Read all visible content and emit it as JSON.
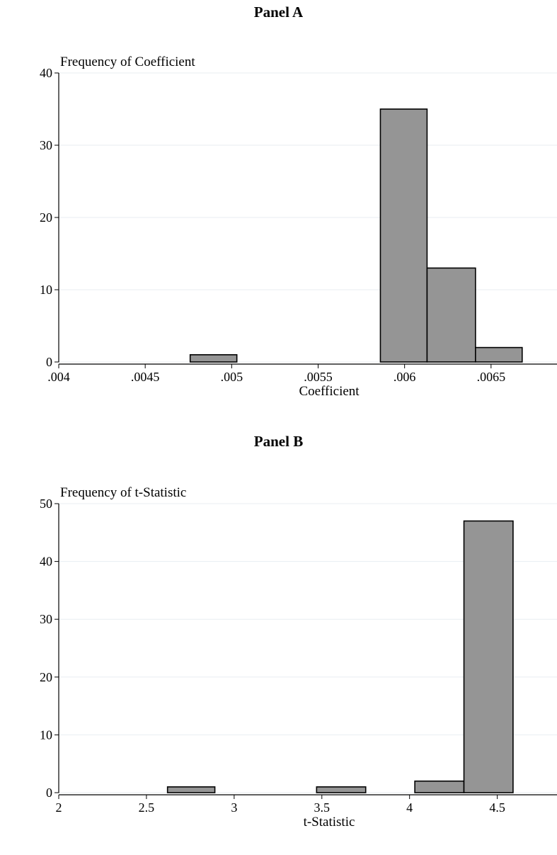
{
  "colors": {
    "bar_fill": "#959595",
    "bar_stroke": "#000000",
    "grid": "#e8eef2",
    "axis": "#000000"
  },
  "chart_data": [
    {
      "type": "bar",
      "title": "Panel A",
      "ylabel": "Frequency of Coefficient",
      "xlabel": "Coefficient",
      "xlim": [
        0.004,
        0.00682
      ],
      "ylim": [
        0,
        40
      ],
      "xticks": [
        0.004,
        0.0045,
        0.005,
        0.0055,
        0.006,
        0.0065
      ],
      "xtick_labels": [
        ".004",
        ".0045",
        ".005",
        ".0055",
        ".006",
        ".0065"
      ],
      "yticks": [
        0,
        10,
        20,
        30,
        40
      ],
      "ytick_labels": [
        "0",
        "10",
        "20",
        "30",
        "40"
      ],
      "grid": true,
      "bins": [
        {
          "x0": 0.00476,
          "x1": 0.00503,
          "count": 1
        },
        {
          "x0": 0.00586,
          "x1": 0.00613,
          "count": 35
        },
        {
          "x0": 0.00613,
          "x1": 0.00641,
          "count": 13
        },
        {
          "x0": 0.00641,
          "x1": 0.00668,
          "count": 2
        }
      ]
    },
    {
      "type": "bar",
      "title": "Panel B",
      "ylabel": "Frequency of t-Statistic",
      "xlabel": "t-Statistic",
      "xlim": [
        2,
        4.78
      ],
      "ylim": [
        0,
        50
      ],
      "xticks": [
        2,
        2.5,
        3,
        3.5,
        4,
        4.5
      ],
      "xtick_labels": [
        "2",
        "2.5",
        "3",
        "3.5",
        "4",
        "4.5"
      ],
      "yticks": [
        0,
        10,
        20,
        30,
        40,
        50
      ],
      "ytick_labels": [
        "0",
        "10",
        "20",
        "30",
        "40",
        "50"
      ],
      "grid": true,
      "bins": [
        {
          "x0": 2.62,
          "x1": 2.89,
          "count": 1
        },
        {
          "x0": 3.47,
          "x1": 3.75,
          "count": 1
        },
        {
          "x0": 4.03,
          "x1": 4.31,
          "count": 2
        },
        {
          "x0": 4.31,
          "x1": 4.59,
          "count": 47
        }
      ]
    }
  ]
}
